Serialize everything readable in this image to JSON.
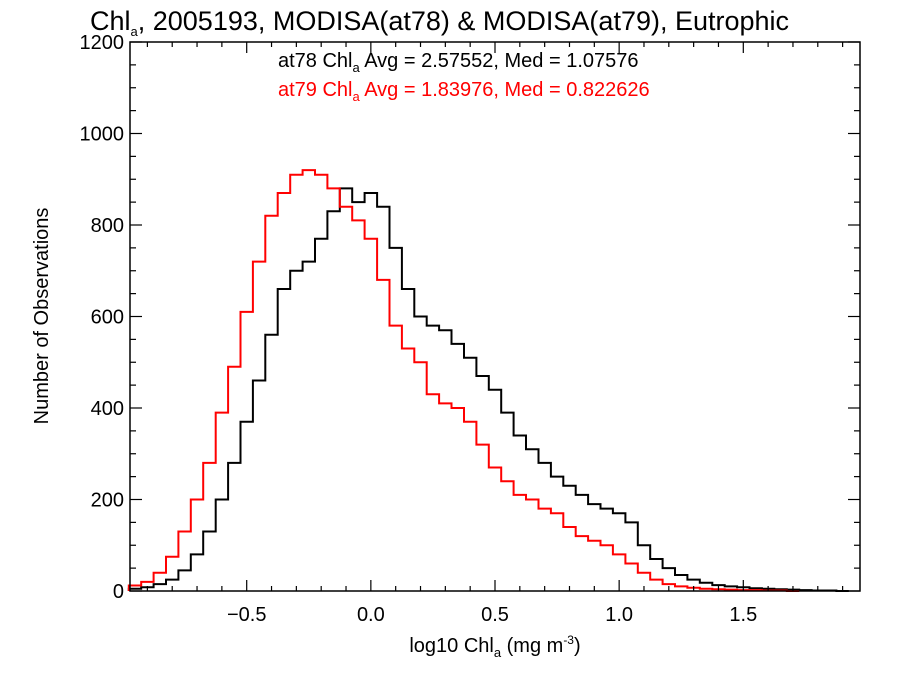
{
  "chart_data": {
    "type": "line",
    "title": {
      "prefix": "Chl",
      "sub": "a",
      "suffix": ", 2005193, MODISA(at78) & MODISA(at79), Eutrophic"
    },
    "xlabel": {
      "prefix": "log10 Chl",
      "sub": "a",
      "mid": " (mg m",
      "sup": "-3",
      "suffix": ")"
    },
    "ylabel": "Number of Observations",
    "xlim": [
      -0.97,
      1.97
    ],
    "ylim": [
      0,
      1200
    ],
    "x_ticks": [
      {
        "value": -0.5,
        "label": "−0.5"
      },
      {
        "value": 0.0,
        "label": "0.0"
      },
      {
        "value": 0.5,
        "label": "0.5"
      },
      {
        "value": 1.0,
        "label": "1.0"
      },
      {
        "value": 1.5,
        "label": "1.5"
      }
    ],
    "y_ticks": [
      {
        "value": 0,
        "label": "0"
      },
      {
        "value": 200,
        "label": "200"
      },
      {
        "value": 400,
        "label": "400"
      },
      {
        "value": 600,
        "label": "600"
      },
      {
        "value": 800,
        "label": "800"
      },
      {
        "value": 1000,
        "label": "1000"
      },
      {
        "value": 1200,
        "label": "1200"
      }
    ],
    "grid": false,
    "series": [
      {
        "name": "at78",
        "color": "#000000",
        "stat": {
          "prefix": "at78 Chl",
          "sub": "a",
          "suffix": " Avg = 2.57552, Med = 1.07576"
        },
        "x": [
          -0.95,
          -0.9,
          -0.85,
          -0.8,
          -0.75,
          -0.7,
          -0.65,
          -0.6,
          -0.55,
          -0.5,
          -0.45,
          -0.4,
          -0.35,
          -0.3,
          -0.25,
          -0.2,
          -0.15,
          -0.1,
          -0.05,
          0.0,
          0.05,
          0.1,
          0.15,
          0.2,
          0.25,
          0.3,
          0.35,
          0.4,
          0.45,
          0.5,
          0.55,
          0.6,
          0.65,
          0.7,
          0.75,
          0.8,
          0.85,
          0.9,
          0.95,
          1.0,
          1.05,
          1.1,
          1.15,
          1.2,
          1.25,
          1.3,
          1.35,
          1.4,
          1.45,
          1.5,
          1.55,
          1.6,
          1.65,
          1.7,
          1.75,
          1.8,
          1.85,
          1.9
        ],
        "values": [
          5,
          8,
          15,
          25,
          45,
          80,
          130,
          200,
          280,
          370,
          460,
          560,
          660,
          700,
          720,
          770,
          830,
          880,
          850,
          870,
          840,
          750,
          660,
          600,
          580,
          570,
          540,
          510,
          470,
          440,
          390,
          340,
          310,
          280,
          250,
          230,
          210,
          190,
          180,
          170,
          150,
          100,
          70,
          50,
          35,
          25,
          18,
          13,
          10,
          8,
          6,
          5,
          4,
          3,
          2,
          1,
          1,
          0
        ]
      },
      {
        "name": "at79",
        "color": "#ff0000",
        "stat": {
          "prefix": "at79 Chl",
          "sub": "a",
          "suffix": " Avg = 1.83976, Med = 0.822626"
        },
        "x": [
          -0.95,
          -0.9,
          -0.85,
          -0.8,
          -0.75,
          -0.7,
          -0.65,
          -0.6,
          -0.55,
          -0.5,
          -0.45,
          -0.4,
          -0.35,
          -0.3,
          -0.25,
          -0.2,
          -0.15,
          -0.1,
          -0.05,
          0.0,
          0.05,
          0.1,
          0.15,
          0.2,
          0.25,
          0.3,
          0.35,
          0.4,
          0.45,
          0.5,
          0.55,
          0.6,
          0.65,
          0.7,
          0.75,
          0.8,
          0.85,
          0.9,
          0.95,
          1.0,
          1.05,
          1.1,
          1.15,
          1.2,
          1.25,
          1.3,
          1.35,
          1.4,
          1.45,
          1.5,
          1.55,
          1.6,
          1.65,
          1.7
        ],
        "values": [
          12,
          20,
          40,
          75,
          130,
          200,
          280,
          390,
          490,
          610,
          720,
          820,
          870,
          910,
          920,
          910,
          880,
          840,
          810,
          770,
          680,
          580,
          530,
          500,
          430,
          410,
          400,
          370,
          320,
          270,
          240,
          210,
          200,
          180,
          170,
          140,
          120,
          110,
          100,
          80,
          60,
          40,
          25,
          15,
          10,
          7,
          5,
          4,
          3,
          2,
          2,
          1,
          1,
          0
        ]
      }
    ]
  }
}
